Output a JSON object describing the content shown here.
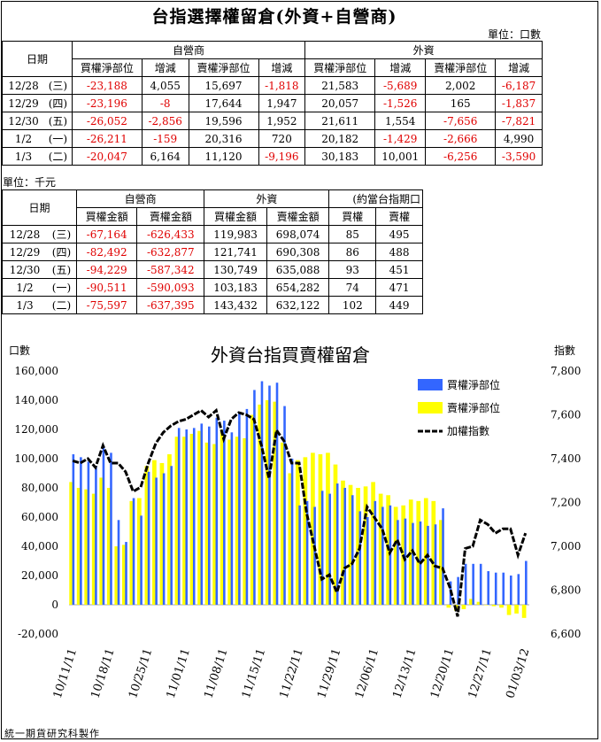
{
  "page_title": "台指選擇權留倉(外資+自營商)",
  "unit_contracts": "單位：口數",
  "unit_thousand": "單位：千元",
  "footer": "統一期貨研究科製作",
  "table1": {
    "date_header": "日期",
    "group_dealer": "自營商",
    "group_foreign": "外資",
    "columns": [
      "買權淨部位",
      "增減",
      "賣權淨部位",
      "增減",
      "買權淨部位",
      "增減",
      "賣權淨部位",
      "增減"
    ],
    "rows": [
      {
        "date": "12/28",
        "dow": "(三)",
        "cells": [
          "-23,188",
          "4,055",
          "15,697",
          "-1,818",
          "21,583",
          "-5,689",
          "2,002",
          "-6,187"
        ]
      },
      {
        "date": "12/29",
        "dow": "(四)",
        "cells": [
          "-23,196",
          "-8",
          "17,644",
          "1,947",
          "20,057",
          "-1,526",
          "165",
          "-1,837"
        ]
      },
      {
        "date": "12/30",
        "dow": "(五)",
        "cells": [
          "-26,052",
          "-2,856",
          "19,596",
          "1,952",
          "21,611",
          "1,554",
          "-7,656",
          "-7,821"
        ]
      },
      {
        "date": "1/2",
        "dow": "(一)",
        "cells": [
          "-26,211",
          "-159",
          "20,316",
          "720",
          "20,182",
          "-1,429",
          "-2,666",
          "4,990"
        ]
      },
      {
        "date": "1/3",
        "dow": "(二)",
        "cells": [
          "-20,047",
          "6,164",
          "11,120",
          "-9,196",
          "30,183",
          "10,001",
          "-6,256",
          "-3,590"
        ]
      }
    ]
  },
  "table2": {
    "date_header": "日期",
    "group_dealer": "自營商",
    "group_foreign": "外資",
    "group_equiv": "(約當台指期口",
    "columns": [
      "買權金額",
      "賣權金額",
      "買權金額",
      "賣權金額",
      "買權",
      "賣權"
    ],
    "rows": [
      {
        "date": "12/28",
        "dow": "(三)",
        "cells": [
          "-67,164",
          "-626,433",
          "119,983",
          "698,074",
          "85",
          "495"
        ]
      },
      {
        "date": "12/29",
        "dow": "(四)",
        "cells": [
          "-82,492",
          "-632,877",
          "121,741",
          "690,308",
          "86",
          "488"
        ]
      },
      {
        "date": "12/30",
        "dow": "(五)",
        "cells": [
          "-94,229",
          "-587,342",
          "130,749",
          "635,088",
          "93",
          "451"
        ]
      },
      {
        "date": "1/2",
        "dow": "(一)",
        "cells": [
          "-90,511",
          "-590,093",
          "103,183",
          "654,282",
          "74",
          "471"
        ]
      },
      {
        "date": "1/3",
        "dow": "(二)",
        "cells": [
          "-75,597",
          "-637,395",
          "143,432",
          "632,122",
          "102",
          "449"
        ]
      }
    ]
  },
  "chart_data": {
    "type": "bar",
    "title": "外資台指買賣權留倉",
    "ylabel_left": "口數",
    "ylabel_right": "指數",
    "ylim": [
      -20000,
      160000
    ],
    "y2lim": [
      6600,
      7800
    ],
    "yticks": [
      "160,000",
      "140,000",
      "120,000",
      "100,000",
      "80,000",
      "60,000",
      "40,000",
      "20,000",
      "0",
      "-20,000"
    ],
    "y2ticks": [
      "7,800",
      "7,600",
      "7,400",
      "7,200",
      "7,000",
      "6,800",
      "6,600"
    ],
    "xtick_labels": [
      "10/11/11",
      "10/18/11",
      "10/25/11",
      "11/01/11",
      "11/08/11",
      "11/15/11",
      "11/22/11",
      "11/29/11",
      "12/06/11",
      "12/13/11",
      "12/20/11",
      "12/27/11",
      "01/03/12"
    ],
    "legend_position": "top-right",
    "colors": {
      "call": "#3366ff",
      "put": "#ffff00",
      "index": "#000000"
    },
    "series": [
      {
        "name": "買權淨部位",
        "values": [
          103000,
          101000,
          98000,
          95000,
          108000,
          104000,
          58000,
          43000,
          73000,
          61000,
          91000,
          87000,
          90000,
          95000,
          121000,
          120000,
          121000,
          124000,
          122000,
          128000,
          126000,
          118000,
          131000,
          134000,
          147000,
          153000,
          150000,
          152000,
          136000,
          100000,
          68000,
          71000,
          67000,
          78000,
          76000,
          83000,
          80000,
          75000,
          64000,
          60000,
          71000,
          67000,
          68000,
          58000,
          59000,
          56000,
          57000,
          54000,
          55000,
          66000,
          16000,
          19000,
          28000,
          28000,
          28000,
          23000,
          22000,
          22000,
          20000,
          21000,
          30000
        ]
      },
      {
        "name": "賣權淨部位",
        "values": [
          84000,
          80000,
          79000,
          76000,
          87000,
          80000,
          40000,
          41000,
          71000,
          73000,
          95000,
          99000,
          97000,
          103000,
          115000,
          115000,
          117000,
          119000,
          111000,
          110000,
          120000,
          113000,
          115000,
          114000,
          130000,
          137000,
          140000,
          139000,
          111000,
          90000,
          99000,
          101000,
          104000,
          103000,
          104000,
          96000,
          85000,
          82000,
          80000,
          81000,
          84000,
          76000,
          75000,
          67000,
          68000,
          72000,
          71000,
          73000,
          71000,
          58000,
          -2000,
          -4000,
          -3000,
          4000,
          2000,
          0,
          -1000,
          -2000,
          -7000,
          -6000,
          -9000
        ]
      },
      {
        "name": "加權指數",
        "values": [
          7390,
          7380,
          7400,
          7360,
          7460,
          7380,
          7380,
          7340,
          7250,
          7270,
          7380,
          7470,
          7520,
          7550,
          7570,
          7580,
          7600,
          7620,
          7590,
          7620,
          7490,
          7580,
          7610,
          7600,
          7580,
          7460,
          7310,
          7530,
          7480,
          7380,
          7380,
          7150,
          7000,
          6850,
          6870,
          6790,
          6900,
          6920,
          6990,
          7180,
          7130,
          7080,
          6970,
          7030,
          6940,
          6980,
          6920,
          6960,
          6910,
          6900,
          6810,
          6680,
          6990,
          7000,
          7120,
          7100,
          7060,
          7080,
          7080,
          6960,
          7060
        ]
      }
    ]
  }
}
